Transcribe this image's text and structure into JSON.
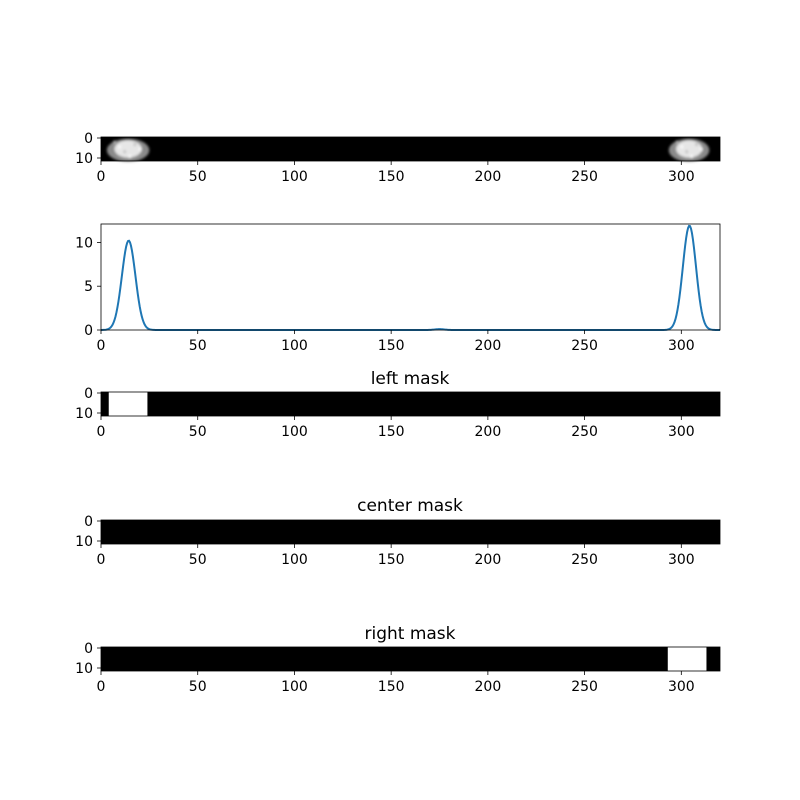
{
  "chart_data": [
    {
      "type": "heatmap",
      "title": "",
      "colormap": "gray",
      "image_width": 320,
      "image_height": 12,
      "bright_regions": [
        {
          "x_start": 2,
          "x_end": 24,
          "peak_center": 14
        },
        {
          "x_start": 293,
          "x_end": 314,
          "peak_center": 304
        }
      ],
      "xlim": [
        0,
        320
      ],
      "x_ticks": [
        0,
        50,
        100,
        150,
        200,
        250,
        300
      ],
      "y_ticks": [
        0,
        10
      ]
    },
    {
      "type": "line",
      "title": "",
      "xlim": [
        0,
        320
      ],
      "ylim": [
        0,
        12.1
      ],
      "x_ticks": [
        0,
        50,
        100,
        150,
        200,
        250,
        300
      ],
      "y_ticks": [
        0,
        5,
        10
      ],
      "color": "#1f77b4",
      "peaks": [
        {
          "center": 14.3,
          "height": 10.2,
          "width": 3.5
        },
        {
          "center": 304.2,
          "height": 11.9,
          "width": 3.4
        },
        {
          "center": 175,
          "height": 0.1,
          "width": 2.5
        }
      ]
    },
    {
      "type": "heatmap",
      "title": "left mask",
      "colormap": "gray",
      "image_width": 320,
      "image_height": 12,
      "mask_range": [
        4,
        24
      ],
      "xlim": [
        0,
        320
      ],
      "x_ticks": [
        0,
        50,
        100,
        150,
        200,
        250,
        300
      ],
      "y_ticks": [
        0,
        10
      ]
    },
    {
      "type": "heatmap",
      "title": "center mask",
      "colormap": "gray",
      "image_width": 320,
      "image_height": 12,
      "mask_range": null,
      "xlim": [
        0,
        320
      ],
      "x_ticks": [
        0,
        50,
        100,
        150,
        200,
        250,
        300
      ],
      "y_ticks": [
        0,
        10
      ]
    },
    {
      "type": "heatmap",
      "title": "right mask",
      "colormap": "gray",
      "image_width": 320,
      "image_height": 12,
      "mask_range": [
        293,
        313
      ],
      "xlim": [
        0,
        320
      ],
      "x_ticks": [
        0,
        50,
        100,
        150,
        200,
        250,
        300
      ],
      "y_ticks": [
        0,
        10
      ]
    }
  ]
}
